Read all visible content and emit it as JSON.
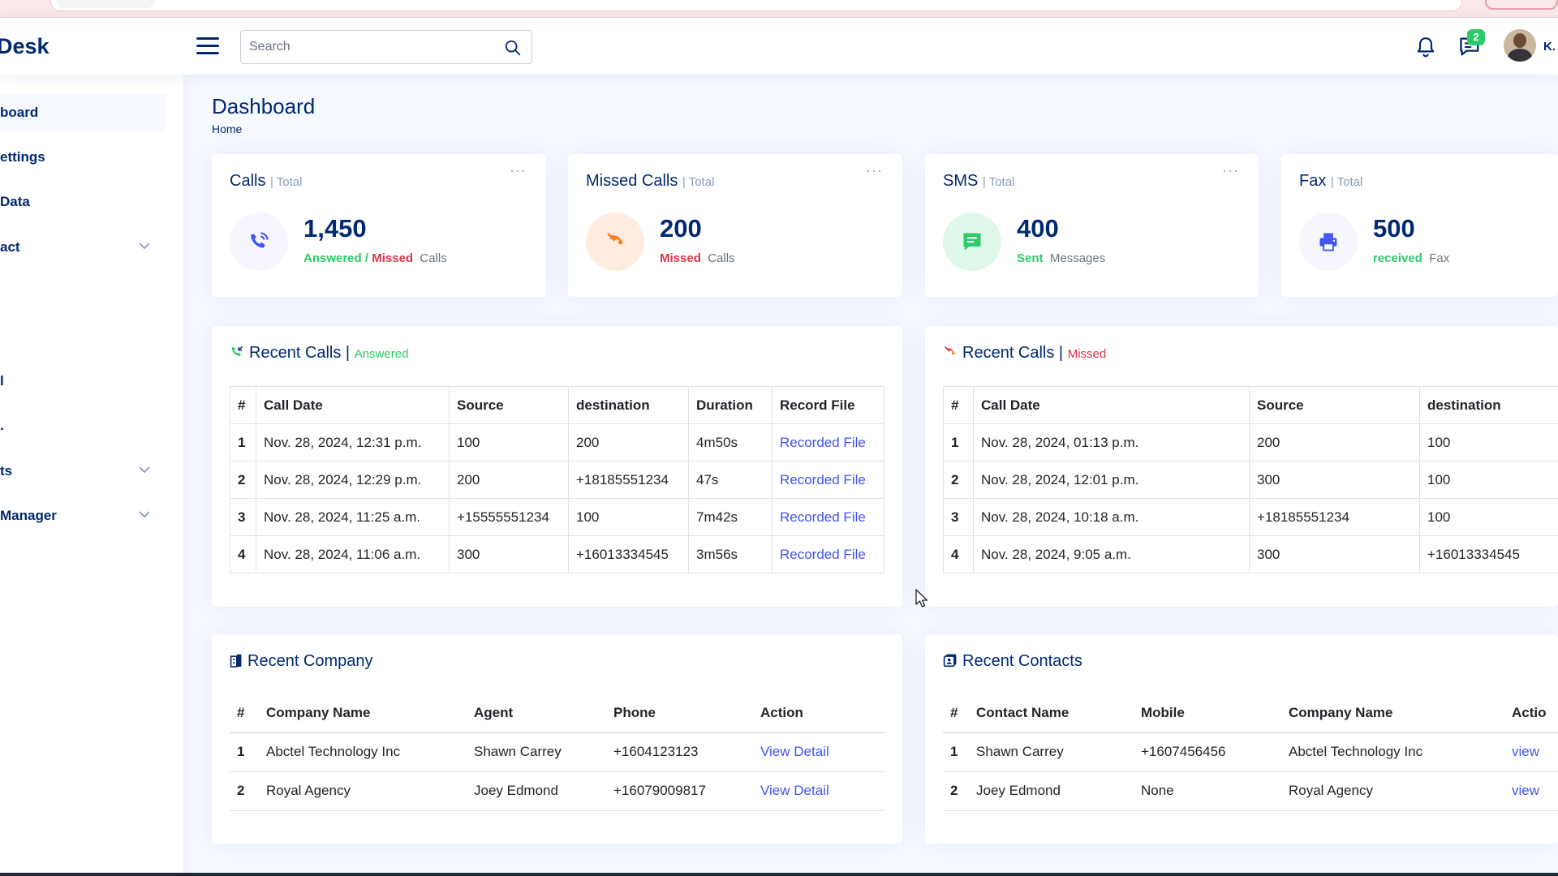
{
  "app": {
    "logo": "Desk"
  },
  "header": {
    "search_placeholder": "Search",
    "messages_badge": "2",
    "username": "K."
  },
  "sidebar": {
    "items": [
      {
        "label": "board",
        "active": true,
        "has_chevron": false
      },
      {
        "label": "ettings",
        "has_chevron": false
      },
      {
        "label": "Data",
        "has_chevron": false
      },
      {
        "label": "act",
        "has_chevron": true
      },
      {
        "label": "l",
        "has_chevron": false
      },
      {
        "label": ".",
        "has_chevron": false
      },
      {
        "label": "ts",
        "has_chevron": true
      },
      {
        "label": "Manager",
        "has_chevron": true
      }
    ]
  },
  "page": {
    "title": "Dashboard",
    "breadcrumb": "Home"
  },
  "stats": [
    {
      "title": "Calls",
      "sub": "| Total",
      "value": "1,450",
      "desc_a": "Answered",
      "desc_sep": " / ",
      "desc_b": "Missed",
      "desc_c": "Calls",
      "icon": "phone-icon",
      "bg": "#f6f6fe",
      "color": "#4154f1"
    },
    {
      "title": "Missed Calls",
      "sub": "| Total",
      "value": "200",
      "desc_a": "Missed",
      "desc_c": "Calls",
      "icon": "missed-call-icon",
      "bg": "#ffecdf",
      "color": "#ff771d"
    },
    {
      "title": "SMS",
      "sub": "| Total",
      "value": "400",
      "desc_a": "Sent",
      "desc_c": "Messages",
      "icon": "message-icon",
      "bg": "#e0f8e9",
      "color": "#2eca6a"
    },
    {
      "title": "Fax",
      "sub": "| Total",
      "value": "500",
      "desc_a": "received",
      "desc_c": "Fax",
      "icon": "printer-icon",
      "bg": "#f6f6fe",
      "color": "#4154f1"
    }
  ],
  "card_menu": "···",
  "recent_answered": {
    "title": "Recent Calls |",
    "sub": "Answered",
    "headers": [
      "#",
      "Call Date",
      "Source",
      "destination",
      "Duration",
      "Record File"
    ],
    "rows": [
      [
        "1",
        "Nov. 28, 2024, 12:31 p.m.",
        "100",
        "200",
        "4m50s",
        "Recorded File"
      ],
      [
        "2",
        "Nov. 28, 2024, 12:29 p.m.",
        "200",
        "+18185551234",
        "47s",
        "Recorded File"
      ],
      [
        "3",
        "Nov. 28, 2024, 11:25 a.m.",
        "+15555551234",
        "100",
        "7m42s",
        "Recorded File"
      ],
      [
        "4",
        "Nov. 28, 2024, 11:06 a.m.",
        "300",
        "+16013334545",
        "3m56s",
        "Recorded File"
      ]
    ]
  },
  "recent_missed": {
    "title": "Recent Calls |",
    "sub": "Missed",
    "headers": [
      "#",
      "Call Date",
      "Source",
      "destination"
    ],
    "rows": [
      [
        "1",
        "Nov. 28, 2024, 01:13 p.m.",
        "200",
        "100"
      ],
      [
        "2",
        "Nov. 28, 2024, 12:01 p.m.",
        "300",
        "100"
      ],
      [
        "3",
        "Nov. 28, 2024, 10:18 a.m.",
        "+18185551234",
        "100"
      ],
      [
        "4",
        "Nov. 28, 2024, 9:05 a.m.",
        "300",
        "+16013334545"
      ]
    ]
  },
  "recent_company": {
    "title": "Recent Company",
    "headers": [
      "#",
      "Company Name",
      "Agent",
      "Phone",
      "Action"
    ],
    "rows": [
      [
        "1",
        "Abctel Technology Inc",
        "Shawn Carrey",
        "+1604123123",
        "View Detail"
      ],
      [
        "2",
        "Royal Agency",
        "Joey Edmond",
        "+16079009817",
        "View Detail"
      ]
    ]
  },
  "recent_contacts": {
    "title": "Recent Contacts",
    "headers": [
      "#",
      "Contact Name",
      "Mobile",
      "Company Name",
      "Actio"
    ],
    "rows": [
      [
        "1",
        "Shawn Carrey",
        "+1607456456",
        "Abctel Technology Inc",
        "view"
      ],
      [
        "2",
        "Joey Edmond",
        "None",
        "Royal Agency",
        "view"
      ]
    ]
  },
  "colors": {
    "primary": "#012970",
    "accent": "#4154f1",
    "green": "#2eca6a",
    "red": "#dc3545",
    "orange": "#ff771d"
  }
}
